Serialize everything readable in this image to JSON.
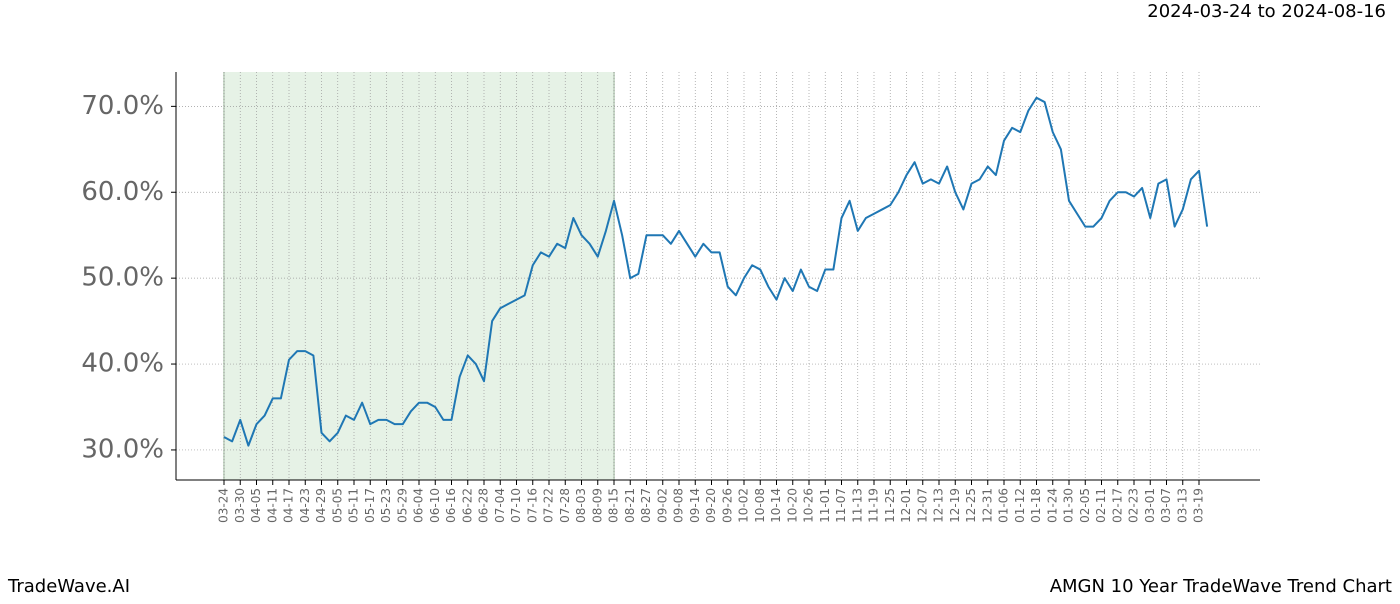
{
  "chart_data": {
    "type": "line",
    "title": "2024-03-24 to 2024-08-16",
    "footer_left": "TradeWave.AI",
    "footer_right": "AMGN 10 Year TradeWave Trend Chart",
    "categories": [
      "03-24",
      null,
      "03-30",
      null,
      "04-05",
      null,
      "04-11",
      null,
      "04-17",
      null,
      "04-23",
      null,
      "04-29",
      null,
      "05-05",
      null,
      "05-11",
      null,
      "05-17",
      null,
      "05-23",
      null,
      "05-29",
      null,
      "06-04",
      null,
      "06-10",
      null,
      "06-16",
      null,
      "06-22",
      null,
      "06-28",
      null,
      "07-04",
      null,
      "07-10",
      null,
      "07-16",
      null,
      "07-22",
      null,
      "07-28",
      null,
      "08-03",
      null,
      "08-09",
      null,
      "08-15",
      null,
      "08-21",
      null,
      "08-27",
      null,
      "09-02",
      null,
      "09-08",
      null,
      "09-14",
      null,
      "09-20",
      null,
      "09-26",
      null,
      "10-02",
      null,
      "10-08",
      null,
      "10-14",
      null,
      "10-20",
      null,
      "10-26",
      null,
      "11-01",
      null,
      "11-07",
      null,
      "11-13",
      null,
      "11-19",
      null,
      "11-25",
      null,
      "12-01",
      null,
      "12-07",
      null,
      "12-13",
      null,
      "12-19",
      null,
      "12-25",
      null,
      "12-31",
      null,
      "01-06",
      null,
      "01-12",
      null,
      "01-18",
      null,
      "01-24",
      null,
      "01-30",
      null,
      "02-05",
      null,
      "02-11",
      null,
      "02-17",
      null,
      "02-23",
      null,
      "03-01",
      null,
      "03-07",
      null,
      "03-13",
      null,
      "03-19",
      null
    ],
    "series": [
      {
        "name": "AMGN",
        "color": "#1f77b4",
        "values": [
          31.5,
          31,
          33.5,
          30.5,
          33,
          34,
          36,
          36,
          40.5,
          41.5,
          41.5,
          41,
          32,
          31,
          32,
          34,
          33.5,
          35.5,
          33,
          33.5,
          33.5,
          33,
          33,
          34.5,
          35.5,
          35.5,
          35,
          33.5,
          33.5,
          38.5,
          41,
          40,
          38,
          45,
          46.5,
          47,
          47.5,
          48,
          51.5,
          53,
          52.5,
          54,
          53.5,
          57,
          55,
          54,
          52.5,
          55.5,
          59,
          55,
          50,
          50.5,
          55,
          55,
          55,
          54,
          55.5,
          54,
          52.5,
          54,
          53,
          53,
          49,
          48,
          50,
          51.5,
          51,
          49,
          47.5,
          50,
          48.5,
          51,
          49,
          48.5,
          51,
          51,
          57,
          59,
          55.5,
          57,
          57.5,
          58,
          58.5,
          60,
          62,
          63.5,
          61,
          61.5,
          61,
          63,
          60,
          58,
          61,
          61.5,
          63,
          62,
          66,
          67.5,
          67,
          69.5,
          71,
          70.5,
          67,
          65,
          59,
          57.5,
          56,
          56,
          57,
          59,
          60,
          60,
          59.5,
          60.5,
          57,
          61,
          61.5,
          56,
          58,
          61.5,
          62.5,
          56
        ]
      }
    ],
    "shaded_range": [
      "03-24",
      "08-15"
    ],
    "shade_color": "#e6f2e6",
    "ylim": [
      26.5,
      74
    ],
    "yticks": [
      {
        "value": 30,
        "label": "30.0%"
      },
      {
        "value": 40,
        "label": "40.0%"
      },
      {
        "value": 50,
        "label": "50.0%"
      },
      {
        "value": 60,
        "label": "60.0%"
      },
      {
        "value": 70,
        "label": "70.0%"
      }
    ],
    "grid": true
  }
}
